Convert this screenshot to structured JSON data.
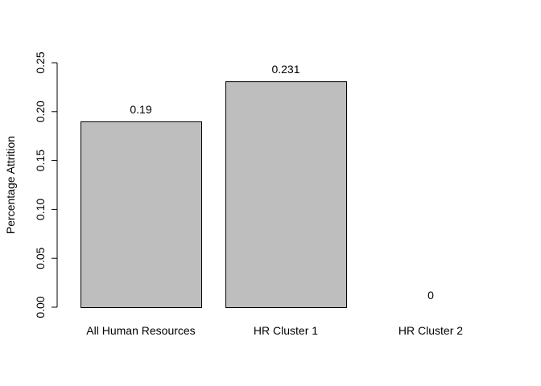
{
  "chart_data": {
    "type": "bar",
    "title": "",
    "xlabel": "",
    "ylabel": "Percentage Attrition",
    "categories": [
      "All Human Resources",
      "HR Cluster 1",
      "HR Cluster 2"
    ],
    "values": [
      0.19,
      0.231,
      0
    ],
    "data_labels": [
      "0.19",
      "0.231",
      "0"
    ],
    "ylim": [
      0,
      0.25
    ],
    "yticks": [
      0,
      0.05,
      0.1,
      0.15,
      0.2,
      0.25
    ],
    "ytick_labels": [
      "0.00",
      "0.05",
      "0.10",
      "0.15",
      "0.20",
      "0.25"
    ],
    "grid": false,
    "legend": "none",
    "bar_color": "#bebebe",
    "bar_border_color": "#000000"
  }
}
